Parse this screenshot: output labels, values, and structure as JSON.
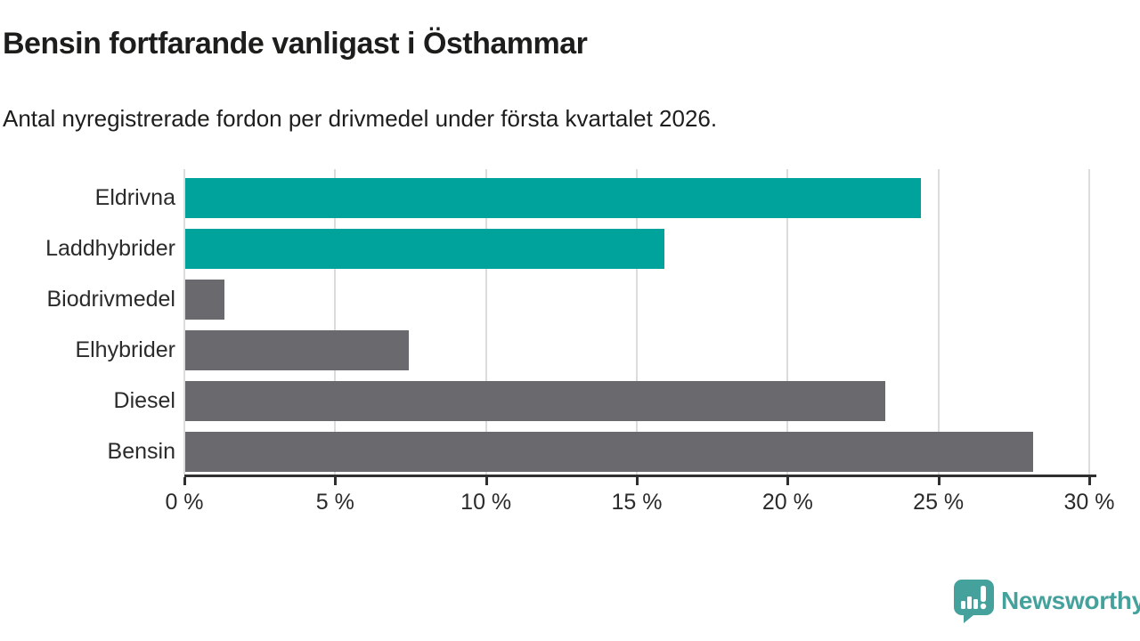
{
  "header": {
    "title": "Bensin fortfarande vanligast i Östhammar",
    "subtitle": "Antal nyregistrerade fordon per drivmedel under första kvartalet 2026."
  },
  "chart_data": {
    "type": "bar",
    "orientation": "horizontal",
    "title": "Bensin fortfarande vanligast i Östhammar",
    "subtitle": "Antal nyregistrerade fordon per drivmedel under första kvartalet 2026.",
    "categories": [
      "Eldrivna",
      "Laddhybrider",
      "Biodrivmedel",
      "Elhybrider",
      "Diesel",
      "Bensin"
    ],
    "values": [
      24.4,
      15.9,
      1.3,
      7.4,
      23.2,
      28.1
    ],
    "unit": "%",
    "series": [
      {
        "name": "Nyregistrerade fordon",
        "values": [
          24.4,
          15.9,
          1.3,
          7.4,
          23.2,
          28.1
        ]
      }
    ],
    "bar_colors": [
      "#00a39b",
      "#00a39b",
      "#6a6a6e",
      "#6a6a6e",
      "#6a6a6e",
      "#6a6a6e"
    ],
    "xlabel": "",
    "ylabel": "",
    "xlim": [
      0,
      30
    ],
    "x_ticks": [
      0,
      5,
      10,
      15,
      20,
      25,
      30
    ],
    "x_tick_labels": [
      "0 %",
      "5 %",
      "10 %",
      "15 %",
      "20 %",
      "25 %",
      "30 %"
    ],
    "grid": "vertical",
    "legend_position": "none"
  },
  "colors": {
    "highlight_bar": "#00a39b",
    "default_bar": "#6a6a6e",
    "gridline": "#dcdcdc",
    "axis": "#2f2f2f",
    "text": "#1d1d1b",
    "logo": "#45a19c"
  },
  "branding": {
    "logo_text": "Newsworthy",
    "logo_icon": "speech-bubble-bar-chart-icon"
  }
}
